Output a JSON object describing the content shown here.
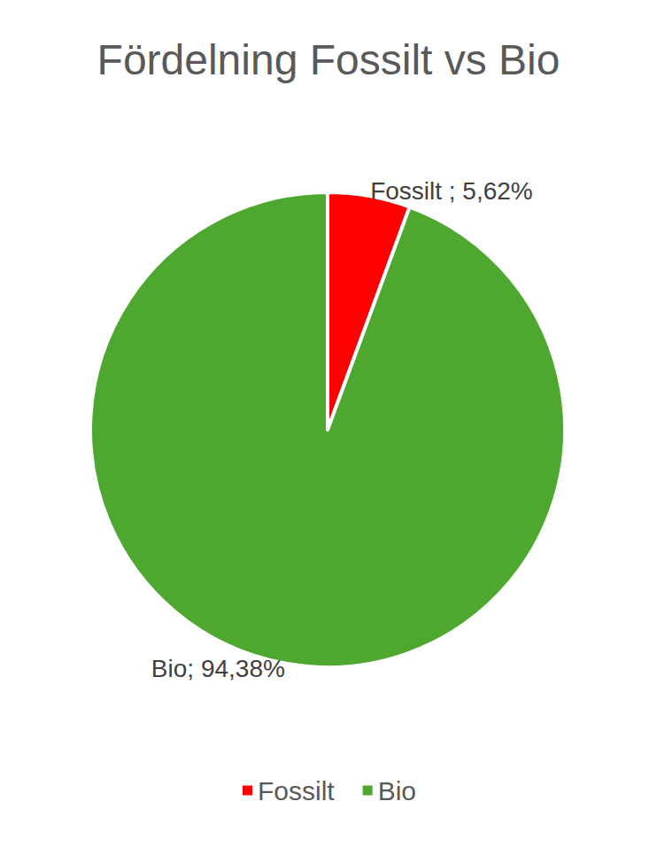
{
  "chart_data": {
    "type": "pie",
    "title": "Fördelning Fossilt vs Bio",
    "categories": [
      "Fossilt",
      "Bio"
    ],
    "values": [
      5.62,
      94.38
    ],
    "value_labels": [
      "Fossilt ; 5,62%",
      "Bio; 94,38%"
    ],
    "colors": [
      "#ff0000",
      "#4ea72e"
    ],
    "data_labels": true,
    "legend": "bottom"
  }
}
